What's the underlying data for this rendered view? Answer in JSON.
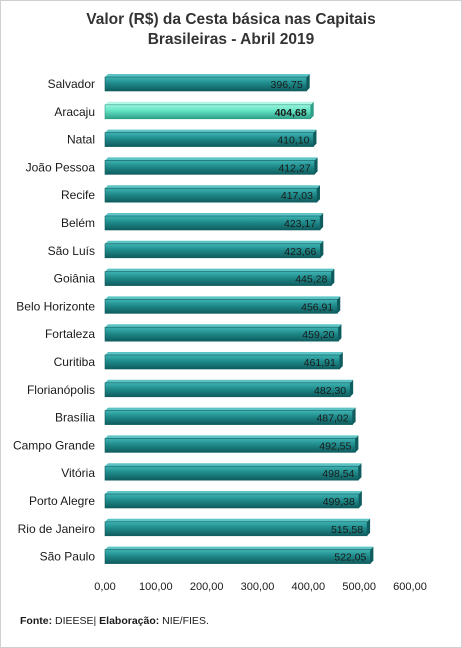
{
  "chart_data": {
    "type": "bar",
    "orientation": "horizontal",
    "title_line1": "Valor (R$) da Cesta básica nas Capitais",
    "title_line2": "Brasileiras - Abril 2019",
    "categories": [
      "Salvador",
      "Aracaju",
      "Natal",
      "João Pessoa",
      "Recife",
      "Belém",
      "São Luís",
      "Goiânia",
      "Belo Horizonte",
      "Fortaleza",
      "Curitiba",
      "Florianópolis",
      "Brasília",
      "Campo Grande",
      "Vitória",
      "Porto Alegre",
      "Rio de Janeiro",
      "São Paulo"
    ],
    "values": [
      396.75,
      404.68,
      410.1,
      412.27,
      417.03,
      423.17,
      423.66,
      445.28,
      456.91,
      459.2,
      461.91,
      482.3,
      487.02,
      492.55,
      498.54,
      499.38,
      515.58,
      522.05
    ],
    "value_labels": [
      "396,75",
      "404,68",
      "410,10",
      "412,27",
      "417,03",
      "423,17",
      "423,66",
      "445,28",
      "456,91",
      "459,20",
      "461,91",
      "482,30",
      "487,02",
      "492,55",
      "498,54",
      "499,38",
      "515,58",
      "522,05"
    ],
    "highlighted_category": "Aracaju",
    "xlim": [
      0,
      600
    ],
    "xticks": [
      0,
      100,
      200,
      300,
      400,
      500,
      600
    ],
    "xtick_labels": [
      "0,00",
      "100,00",
      "200,00",
      "300,00",
      "400,00",
      "500,00",
      "600,00"
    ],
    "grid": false,
    "colors": {
      "bar": "#1f8a8a",
      "bar_dark": "#0f5c5e",
      "bar_highlight": "#5fe0c0",
      "bar_highlight_dark": "#2e9e86"
    }
  },
  "source": {
    "fonte_label": "Fonte:",
    "fonte_value": " DIEESE| ",
    "elab_label": "Elaboração:",
    "elab_value": " NIE/FIES."
  }
}
